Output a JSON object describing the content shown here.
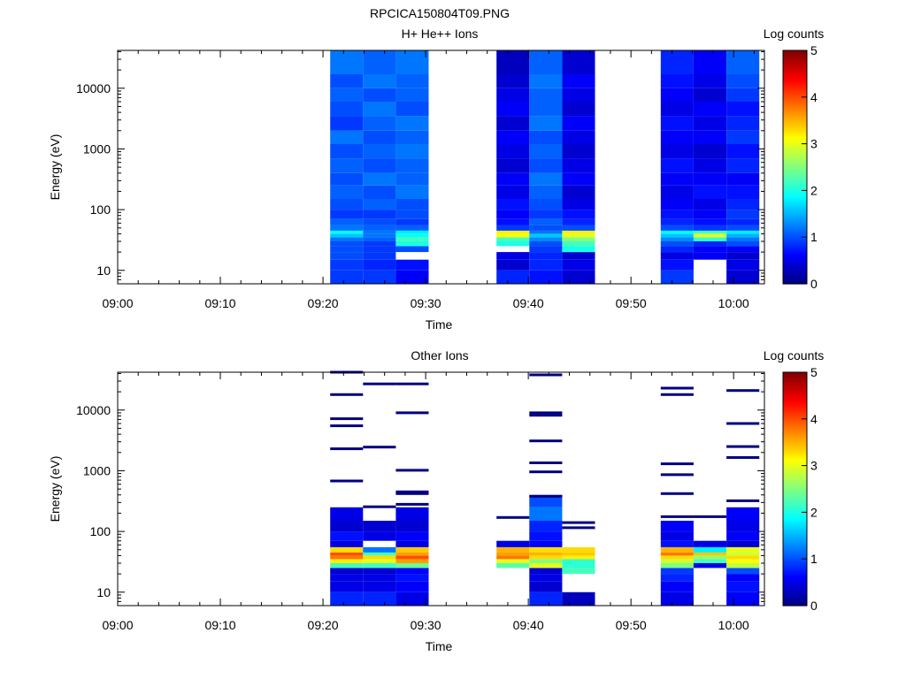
{
  "figure": {
    "title": "RPCICA150804T09.PNG"
  },
  "colors": {
    "palette": [
      "#000080",
      "#0000ff",
      "#0080ff",
      "#00ffff",
      "#80ff80",
      "#ffff00",
      "#ff8000",
      "#ff0000",
      "#800000"
    ],
    "axis": "#000000",
    "background": "#ffffff"
  },
  "chart_data": [
    {
      "type": "heatmap",
      "title": "H+ He++ Ions",
      "xlabel": "Time",
      "ylabel": "Energy (eV)",
      "x_tick_labels": [
        "09:00",
        "09:10",
        "09:20",
        "09:30",
        "09:40",
        "09:50",
        "10:00"
      ],
      "y_tick_labels": [
        "10",
        "100",
        "1000",
        "10000"
      ],
      "y_scale": "log",
      "ylim": [
        6,
        42000
      ],
      "xlim_minutes": [
        0,
        63
      ],
      "colorbar": {
        "label": "Log counts",
        "range": [
          0,
          5
        ],
        "ticks": [
          "0",
          "1",
          "2",
          "3",
          "4",
          "5"
        ]
      },
      "time_bins_minutes": [
        [
          20.7,
          23.9
        ],
        [
          23.9,
          27.1
        ],
        [
          27.1,
          30.3
        ],
        [
          36.9,
          40.1
        ],
        [
          40.1,
          43.3
        ],
        [
          43.3,
          46.5
        ],
        [
          52.9,
          56.1
        ],
        [
          56.1,
          59.3
        ],
        [
          59.3,
          62.5
        ]
      ],
      "energy_bins": [
        [
          6,
          10
        ],
        [
          10,
          15
        ],
        [
          15,
          20
        ],
        [
          20,
          25
        ],
        [
          25,
          30
        ],
        [
          30,
          35
        ],
        [
          35,
          40
        ],
        [
          40,
          45
        ],
        [
          45,
          55
        ],
        [
          55,
          70
        ],
        [
          70,
          100
        ],
        [
          100,
          150
        ],
        [
          150,
          250
        ],
        [
          250,
          400
        ],
        [
          400,
          700
        ],
        [
          700,
          1200
        ],
        [
          1200,
          2000
        ],
        [
          2000,
          3500
        ],
        [
          3500,
          6000
        ],
        [
          6000,
          10000
        ],
        [
          10000,
          17000
        ],
        [
          17000,
          42000
        ]
      ],
      "log_counts": [
        [
          0.9,
          0.9,
          1.0,
          1.0,
          1.0,
          1.2,
          1.6,
          1.9,
          1.2,
          1.1,
          0.9,
          1.0,
          1.1,
          1.0,
          1.1,
          1.0,
          1.2,
          0.9,
          1.0,
          1.1,
          1.0,
          1.2
        ],
        [
          0.9,
          0.8,
          0.9,
          0.9,
          0.9,
          1.1,
          1.2,
          1.2,
          1.1,
          1.0,
          0.9,
          1.1,
          1.0,
          1.2,
          1.0,
          1.1,
          1.0,
          1.1,
          1.2,
          1.0,
          1.2,
          1.1
        ],
        [
          0.6,
          0.7,
          null,
          1.0,
          2.0,
          2.2,
          1.9,
          1.8,
          1.1,
          0.9,
          1.0,
          1.0,
          1.2,
          1.1,
          1.1,
          1.2,
          1.1,
          1.2,
          1.0,
          1.1,
          1.1,
          1.2
        ],
        [
          0.8,
          0.4,
          0.5,
          null,
          2.0,
          2.2,
          3.1,
          3.2,
          0.9,
          0.7,
          0.6,
          0.7,
          0.5,
          0.6,
          0.4,
          0.5,
          0.6,
          0.4,
          0.6,
          0.5,
          0.4,
          0.3
        ],
        [
          0.7,
          0.8,
          0.8,
          0.9,
          1.0,
          1.3,
          1.6,
          1.2,
          1.0,
          1.1,
          0.9,
          1.0,
          1.1,
          1.2,
          1.0,
          1.1,
          1.0,
          1.2,
          1.1,
          1.1,
          1.2,
          1.1
        ],
        [
          0.4,
          0.5,
          0.4,
          2.0,
          2.2,
          2.5,
          3.0,
          3.2,
          1.0,
          0.8,
          0.7,
          0.5,
          0.4,
          0.6,
          0.5,
          0.4,
          0.5,
          0.6,
          0.4,
          0.5,
          0.6,
          0.4
        ],
        [
          0.9,
          0.7,
          0.5,
          0.8,
          1.0,
          1.3,
          1.6,
          1.9,
          1.0,
          0.8,
          0.7,
          0.6,
          0.5,
          0.6,
          0.7,
          0.5,
          0.6,
          0.7,
          0.5,
          0.6,
          0.7,
          0.8
        ],
        [
          null,
          null,
          0.6,
          0.6,
          0.8,
          2.1,
          3.0,
          2.2,
          0.9,
          0.7,
          0.6,
          0.5,
          0.7,
          0.6,
          0.5,
          0.4,
          0.6,
          0.5,
          0.6,
          0.4,
          0.5,
          0.6
        ],
        [
          0.4,
          0.5,
          0.4,
          0.6,
          1.0,
          1.2,
          1.5,
          1.8,
          1.0,
          0.8,
          0.9,
          0.8,
          0.7,
          0.6,
          0.8,
          0.7,
          0.9,
          0.8,
          0.7,
          0.9,
          1.0,
          1.1
        ]
      ]
    },
    {
      "type": "heatmap",
      "title": "Other Ions",
      "xlabel": "Time",
      "ylabel": "Energy (eV)",
      "x_tick_labels": [
        "09:00",
        "09:10",
        "09:20",
        "09:30",
        "09:40",
        "09:50",
        "10:00"
      ],
      "y_tick_labels": [
        "10",
        "100",
        "1000",
        "10000"
      ],
      "y_scale": "log",
      "ylim": [
        6,
        42000
      ],
      "xlim_minutes": [
        0,
        63
      ],
      "colorbar": {
        "label": "Log counts",
        "range": [
          0,
          5
        ],
        "ticks": [
          "0",
          "1",
          "2",
          "3",
          "4",
          "5"
        ]
      },
      "time_bins_minutes": [
        [
          20.7,
          23.9
        ],
        [
          23.9,
          27.1
        ],
        [
          27.1,
          30.3
        ],
        [
          36.9,
          40.1
        ],
        [
          40.1,
          43.3
        ],
        [
          43.3,
          46.5
        ],
        [
          52.9,
          56.1
        ],
        [
          56.1,
          59.3
        ],
        [
          59.3,
          62.5
        ]
      ],
      "energy_bins": [
        [
          6,
          10
        ],
        [
          10,
          15
        ],
        [
          15,
          20
        ],
        [
          20,
          25
        ],
        [
          25,
          30
        ],
        [
          30,
          35
        ],
        [
          35,
          40
        ],
        [
          40,
          45
        ],
        [
          45,
          55
        ],
        [
          55,
          70
        ],
        [
          70,
          100
        ],
        [
          100,
          150
        ],
        [
          150,
          250
        ],
        [
          250,
          400
        ],
        [
          400,
          700
        ],
        [
          700,
          1200
        ],
        [
          1200,
          2000
        ],
        [
          2000,
          3500
        ],
        [
          3500,
          6000
        ],
        [
          6000,
          10000
        ],
        [
          10000,
          17000
        ],
        [
          17000,
          42000
        ]
      ],
      "log_counts": [
        [
          0.8,
          0.5,
          0.5,
          0.4,
          2.2,
          3.2,
          3.8,
          4.0,
          3.3,
          0.5,
          0.7,
          0.4,
          0.5,
          null,
          null,
          null,
          null,
          null,
          null,
          null,
          null,
          null
        ],
        [
          0.8,
          0.5,
          0.5,
          0.4,
          2.2,
          3.0,
          3.3,
          2.2,
          1.2,
          null,
          0.5,
          0.4,
          null,
          null,
          null,
          null,
          null,
          null,
          null,
          null,
          null,
          null
        ],
        [
          0.5,
          0.6,
          0.7,
          0.6,
          2.4,
          3.6,
          4.0,
          3.6,
          3.4,
          0.5,
          0.6,
          0.4,
          0.5,
          null,
          null,
          null,
          null,
          null,
          null,
          null,
          null,
          null
        ],
        [
          null,
          null,
          null,
          null,
          2.3,
          3.0,
          3.8,
          3.6,
          3.5,
          0.5,
          null,
          null,
          null,
          null,
          null,
          null,
          null,
          null,
          null,
          null,
          null,
          null
        ],
        [
          0.8,
          0.4,
          0.5,
          0.4,
          3.0,
          2.5,
          3.3,
          3.5,
          3.3,
          0.6,
          0.7,
          0.8,
          1.2,
          1.0,
          null,
          null,
          null,
          null,
          null,
          null,
          null,
          null
        ],
        [
          0.3,
          null,
          null,
          2.2,
          2.1,
          2.1,
          3.2,
          3.4,
          3.3,
          null,
          null,
          null,
          null,
          null,
          null,
          null,
          null,
          null,
          null,
          null,
          null,
          null
        ],
        [
          0.5,
          0.6,
          0.8,
          0.9,
          2.5,
          2.9,
          3.3,
          3.8,
          3.5,
          0.7,
          0.5,
          0.6,
          null,
          null,
          null,
          null,
          null,
          null,
          null,
          null,
          null,
          null
        ],
        [
          null,
          null,
          null,
          null,
          0.5,
          2.2,
          2.6,
          3.4,
          1.8,
          0.5,
          null,
          null,
          null,
          null,
          null,
          null,
          null,
          null,
          null,
          null,
          null,
          null
        ],
        [
          0.6,
          0.7,
          0.6,
          1.0,
          2.8,
          3.1,
          3.3,
          2.9,
          3.0,
          0.4,
          0.6,
          0.5,
          0.6,
          null,
          null,
          null,
          null,
          null,
          null,
          null,
          null,
          null
        ]
      ],
      "sparse_lines": [
        {
          "col": 0,
          "energy": [
            42000,
            18000,
            7200,
            5500,
            2300,
            680
          ]
        },
        {
          "col": 1,
          "energy": [
            27000,
            2450,
            255
          ]
        },
        {
          "col": 2,
          "energy": [
            27000,
            9000,
            1020,
            450,
            420,
            280
          ]
        },
        {
          "col": 3,
          "energy": [
            170
          ]
        },
        {
          "col": 4,
          "energy": [
            38000,
            9000,
            8200,
            3100,
            1350,
            960,
            380
          ]
        },
        {
          "col": 5,
          "energy": [
            140,
            115
          ]
        },
        {
          "col": 6,
          "energy": [
            23000,
            18000,
            1300,
            860,
            420,
            175
          ]
        },
        {
          "col": 7,
          "energy": [
            175
          ]
        },
        {
          "col": 8,
          "energy": [
            21000,
            6000,
            2500,
            1650,
            320
          ]
        }
      ]
    }
  ]
}
